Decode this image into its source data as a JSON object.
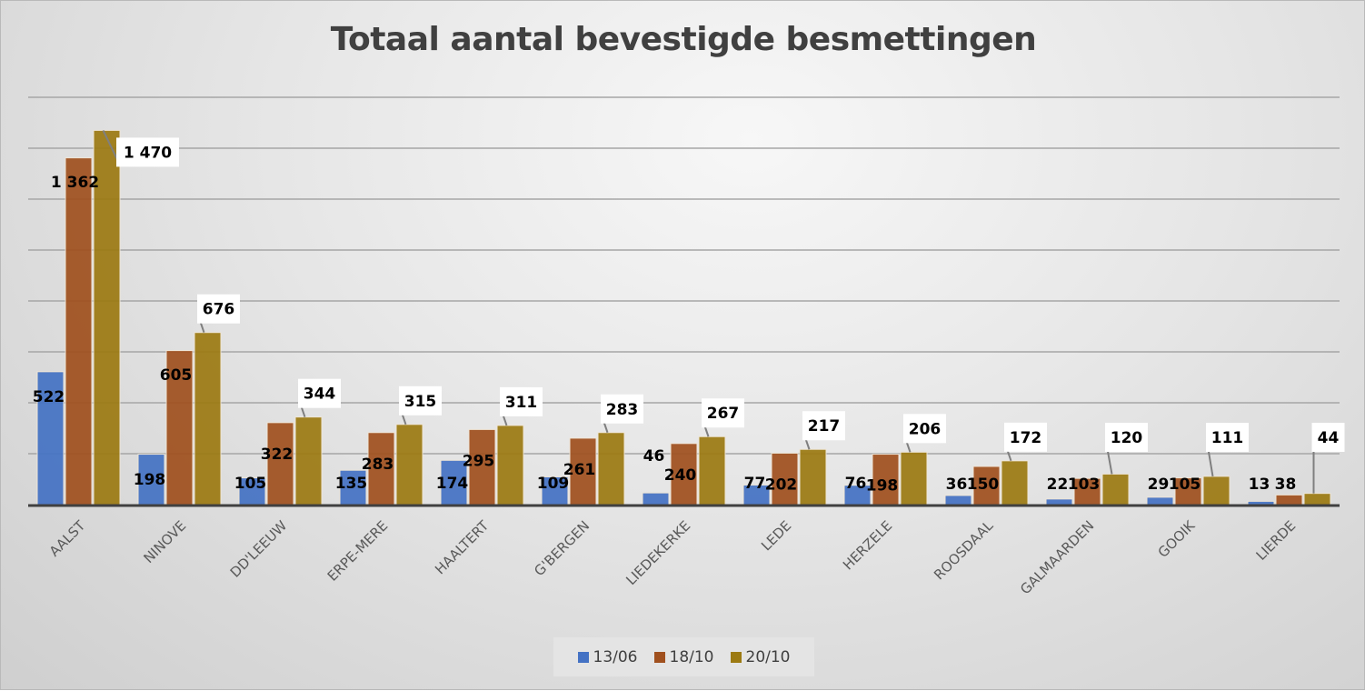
{
  "chart_data": {
    "type": "bar",
    "title": "Totaal aantal bevestigde besmettingen",
    "xlabel": "",
    "ylabel": "",
    "ylim": [
      0,
      1600
    ],
    "grid_step": 200,
    "grid": true,
    "legend_position": "bottom",
    "categories": [
      "AALST",
      "NINOVE",
      "DD'LEEUW",
      "ERPE-MERE",
      "HAALTERT",
      "G'BERGEN",
      "LIEDEKERKE",
      "LEDE",
      "HERZELE",
      "ROOSDAAL",
      "GALMAARDEN",
      "GOOIK",
      "LIERDE"
    ],
    "series": [
      {
        "name": "13/06",
        "color": "#4472C4",
        "values": [
          522,
          198,
          105,
          135,
          174,
          109,
          46,
          77,
          76,
          36,
          22,
          29,
          13
        ]
      },
      {
        "name": "18/10",
        "color": "#A0501E",
        "values": [
          1362,
          605,
          322,
          283,
          295,
          261,
          240,
          202,
          198,
          150,
          103,
          105,
          38
        ]
      },
      {
        "name": "20/10",
        "color": "#9C7A12",
        "values": [
          1470,
          676,
          344,
          315,
          311,
          283,
          267,
          217,
          206,
          172,
          120,
          111,
          44
        ]
      }
    ],
    "value_labels": {
      "13/06": [
        "522",
        "198",
        "105",
        "135",
        "174",
        "109",
        "46",
        "77",
        "76",
        "36",
        "22",
        "29",
        "13"
      ],
      "18/10": [
        "1 362",
        "605",
        "322",
        "283",
        "295",
        "261",
        "240",
        "202",
        "198",
        "150",
        "103",
        "105",
        "38"
      ],
      "20/10": [
        "1 470",
        "676",
        "344",
        "315",
        "311",
        "283",
        "267",
        "217",
        "206",
        "172",
        "120",
        "111",
        "44"
      ]
    }
  }
}
